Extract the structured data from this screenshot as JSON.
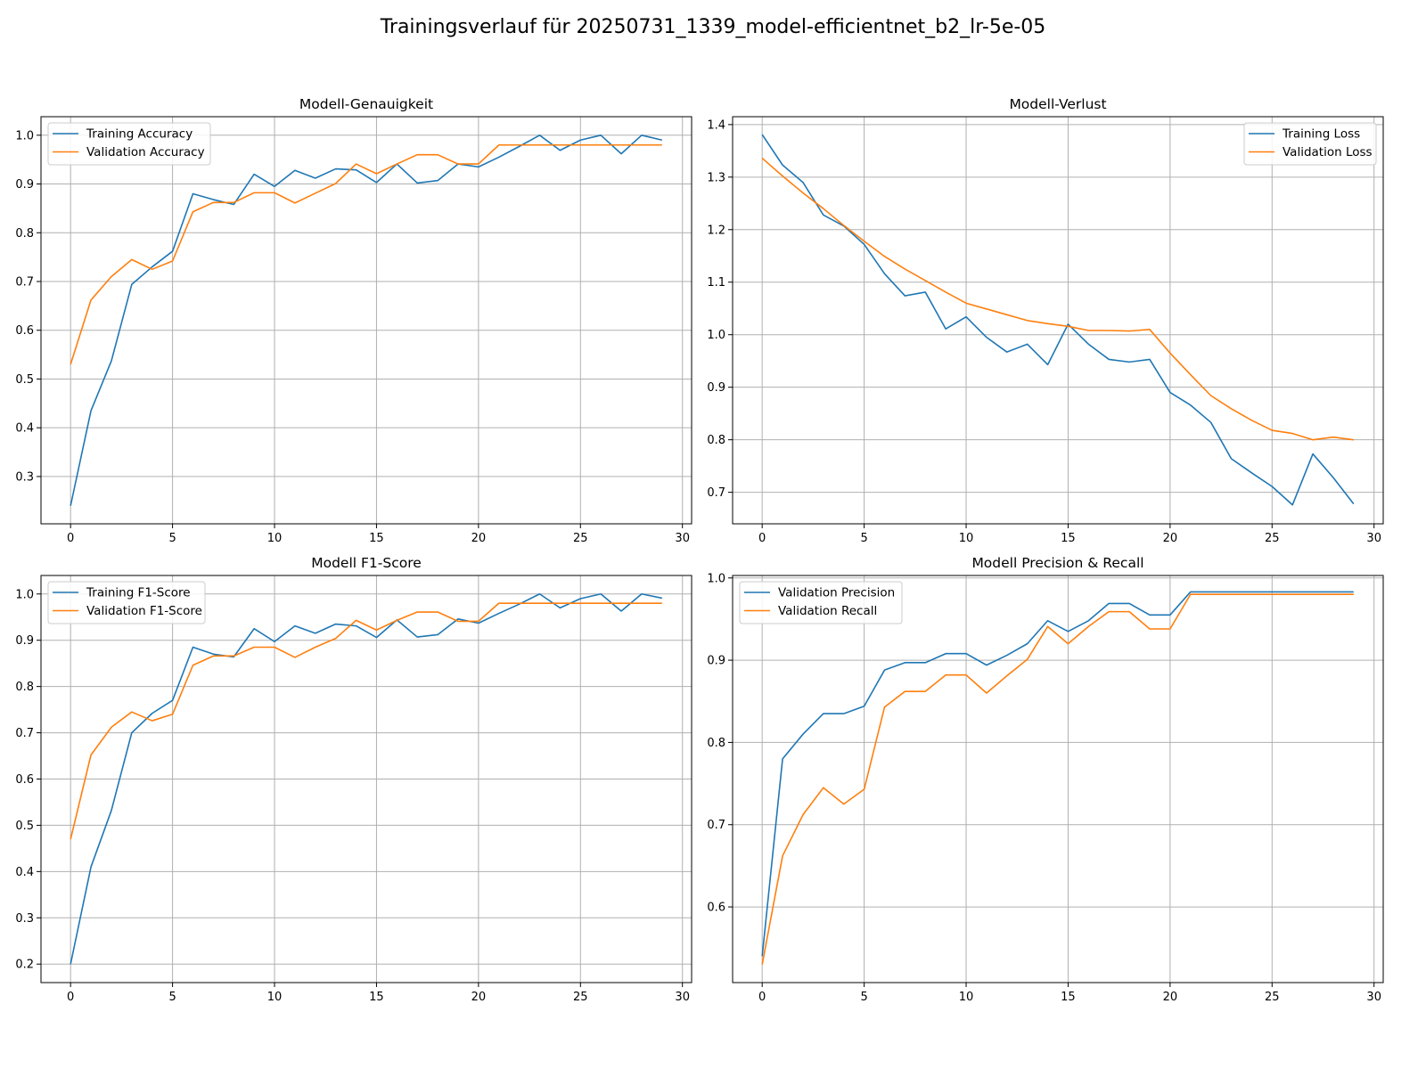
{
  "figure": {
    "suptitle": "Trainingsverlauf für 20250731_1339_model-efficientnet_b2_lr-5e-05"
  },
  "colors": {
    "series1": "#1f77b4",
    "series2": "#ff7f0e",
    "grid": "#b0b0b0"
  },
  "chart_data": [
    {
      "type": "line",
      "title": "Modell-Genauigkeit",
      "xlabel": "",
      "ylabel": "",
      "xlim": [
        -1.45,
        30.45
      ],
      "ylim": [
        0.203,
        1.038
      ],
      "xticks": [
        0,
        5,
        10,
        15,
        20,
        25,
        30
      ],
      "yticks": [
        0.3,
        0.4,
        0.5,
        0.6,
        0.7,
        0.8,
        0.9,
        1.0
      ],
      "ytick_labels": [
        "0.3",
        "0.4",
        "0.5",
        "0.6",
        "0.7",
        "0.8",
        "0.9",
        "1.0"
      ],
      "grid": true,
      "legend": "upper left",
      "x": [
        0,
        1,
        2,
        3,
        4,
        5,
        6,
        7,
        8,
        9,
        10,
        11,
        12,
        13,
        14,
        15,
        16,
        17,
        18,
        19,
        20,
        21,
        22,
        23,
        24,
        25,
        26,
        27,
        28,
        29
      ],
      "series": [
        {
          "name": "Training Accuracy",
          "values": [
            0.24,
            0.435,
            0.537,
            0.694,
            0.73,
            0.762,
            0.88,
            0.868,
            0.858,
            0.92,
            0.895,
            0.928,
            0.912,
            0.931,
            0.929,
            0.903,
            0.941,
            0.902,
            0.907,
            0.941,
            0.935,
            0.955,
            0.977,
            1.0,
            0.969,
            0.99,
            1.0,
            0.962,
            1.0,
            0.99
          ]
        },
        {
          "name": "Validation Accuracy",
          "values": [
            0.53,
            0.662,
            0.71,
            0.745,
            0.725,
            0.742,
            0.843,
            0.862,
            0.862,
            0.882,
            0.882,
            0.861,
            0.881,
            0.901,
            0.941,
            0.921,
            0.941,
            0.96,
            0.96,
            0.941,
            0.941,
            0.98,
            0.98,
            0.98,
            0.98,
            0.98,
            0.98,
            0.98,
            0.98,
            0.98
          ]
        }
      ]
    },
    {
      "type": "line",
      "title": "Modell-Verlust",
      "xlabel": "",
      "ylabel": "",
      "xlim": [
        -1.45,
        30.45
      ],
      "ylim": [
        0.64,
        1.415
      ],
      "xticks": [
        0,
        5,
        10,
        15,
        20,
        25,
        30
      ],
      "yticks": [
        0.7,
        0.8,
        0.9,
        1.0,
        1.1,
        1.2,
        1.3,
        1.4
      ],
      "ytick_labels": [
        "0.7",
        "0.8",
        "0.9",
        "1.0",
        "1.1",
        "1.2",
        "1.3",
        "1.4"
      ],
      "grid": true,
      "legend": "upper right",
      "x": [
        0,
        1,
        2,
        3,
        4,
        5,
        6,
        7,
        8,
        9,
        10,
        11,
        12,
        13,
        14,
        15,
        16,
        17,
        18,
        19,
        20,
        21,
        22,
        23,
        24,
        25,
        26,
        27,
        28,
        29
      ],
      "series": [
        {
          "name": "Training Loss",
          "values": [
            1.381,
            1.323,
            1.29,
            1.228,
            1.207,
            1.172,
            1.116,
            1.074,
            1.081,
            1.011,
            1.034,
            0.995,
            0.967,
            0.982,
            0.943,
            1.02,
            0.982,
            0.953,
            0.948,
            0.953,
            0.89,
            0.866,
            0.833,
            0.764,
            0.737,
            0.711,
            0.676,
            0.773,
            0.728,
            0.678
          ]
        },
        {
          "name": "Validation Loss",
          "values": [
            1.336,
            1.302,
            1.27,
            1.24,
            1.208,
            1.178,
            1.149,
            1.125,
            1.103,
            1.081,
            1.06,
            1.049,
            1.038,
            1.027,
            1.021,
            1.016,
            1.008,
            1.008,
            1.007,
            1.01,
            0.965,
            0.924,
            0.884,
            0.859,
            0.837,
            0.818,
            0.812,
            0.8,
            0.805,
            0.8
          ]
        }
      ]
    },
    {
      "type": "line",
      "title": "Modell F1-Score",
      "xlabel": "",
      "ylabel": "",
      "xlim": [
        -1.45,
        30.45
      ],
      "ylim": [
        0.16,
        1.04
      ],
      "xticks": [
        0,
        5,
        10,
        15,
        20,
        25,
        30
      ],
      "yticks": [
        0.2,
        0.3,
        0.4,
        0.5,
        0.6,
        0.7,
        0.8,
        0.9,
        1.0
      ],
      "ytick_labels": [
        "0.2",
        "0.3",
        "0.4",
        "0.5",
        "0.6",
        "0.7",
        "0.8",
        "0.9",
        "1.0"
      ],
      "grid": true,
      "legend": "upper left",
      "x": [
        0,
        1,
        2,
        3,
        4,
        5,
        6,
        7,
        8,
        9,
        10,
        11,
        12,
        13,
        14,
        15,
        16,
        17,
        18,
        19,
        20,
        21,
        22,
        23,
        24,
        25,
        26,
        27,
        28,
        29
      ],
      "series": [
        {
          "name": "Training F1-Score",
          "values": [
            0.2,
            0.41,
            0.532,
            0.7,
            0.742,
            0.77,
            0.885,
            0.87,
            0.864,
            0.925,
            0.897,
            0.931,
            0.915,
            0.935,
            0.931,
            0.906,
            0.944,
            0.907,
            0.912,
            0.946,
            0.937,
            0.958,
            0.978,
            1.0,
            0.97,
            0.99,
            1.0,
            0.963,
            1.0,
            0.991
          ]
        },
        {
          "name": "Validation F1-Score",
          "values": [
            0.47,
            0.652,
            0.712,
            0.745,
            0.726,
            0.74,
            0.846,
            0.866,
            0.866,
            0.885,
            0.885,
            0.863,
            0.885,
            0.904,
            0.943,
            0.922,
            0.943,
            0.961,
            0.961,
            0.941,
            0.941,
            0.98,
            0.98,
            0.98,
            0.98,
            0.98,
            0.98,
            0.98,
            0.98,
            0.98
          ]
        }
      ]
    },
    {
      "type": "line",
      "title": "Modell Precision & Recall",
      "xlabel": "",
      "ylabel": "",
      "xlim": [
        -1.45,
        30.45
      ],
      "ylim": [
        0.508,
        1.003
      ],
      "xticks": [
        0,
        5,
        10,
        15,
        20,
        25,
        30
      ],
      "yticks": [
        0.6,
        0.7,
        0.8,
        0.9,
        1.0
      ],
      "ytick_labels": [
        "0.6",
        "0.7",
        "0.8",
        "0.9",
        "1.0"
      ],
      "grid": true,
      "legend": "upper left",
      "x": [
        0,
        1,
        2,
        3,
        4,
        5,
        6,
        7,
        8,
        9,
        10,
        11,
        12,
        13,
        14,
        15,
        16,
        17,
        18,
        19,
        20,
        21,
        22,
        23,
        24,
        25,
        26,
        27,
        28,
        29
      ],
      "series": [
        {
          "name": "Validation Precision",
          "values": [
            0.54,
            0.78,
            0.81,
            0.835,
            0.835,
            0.844,
            0.888,
            0.897,
            0.897,
            0.908,
            0.908,
            0.894,
            0.906,
            0.92,
            0.948,
            0.935,
            0.948,
            0.969,
            0.969,
            0.955,
            0.955,
            0.983,
            0.983,
            0.983,
            0.983,
            0.983,
            0.983,
            0.983,
            0.983,
            0.983
          ]
        },
        {
          "name": "Validation Recall",
          "values": [
            0.53,
            0.662,
            0.712,
            0.745,
            0.725,
            0.743,
            0.843,
            0.862,
            0.862,
            0.882,
            0.882,
            0.86,
            0.881,
            0.901,
            0.941,
            0.92,
            0.941,
            0.959,
            0.959,
            0.938,
            0.938,
            0.98,
            0.98,
            0.98,
            0.98,
            0.98,
            0.98,
            0.98,
            0.98,
            0.98
          ]
        }
      ]
    }
  ]
}
